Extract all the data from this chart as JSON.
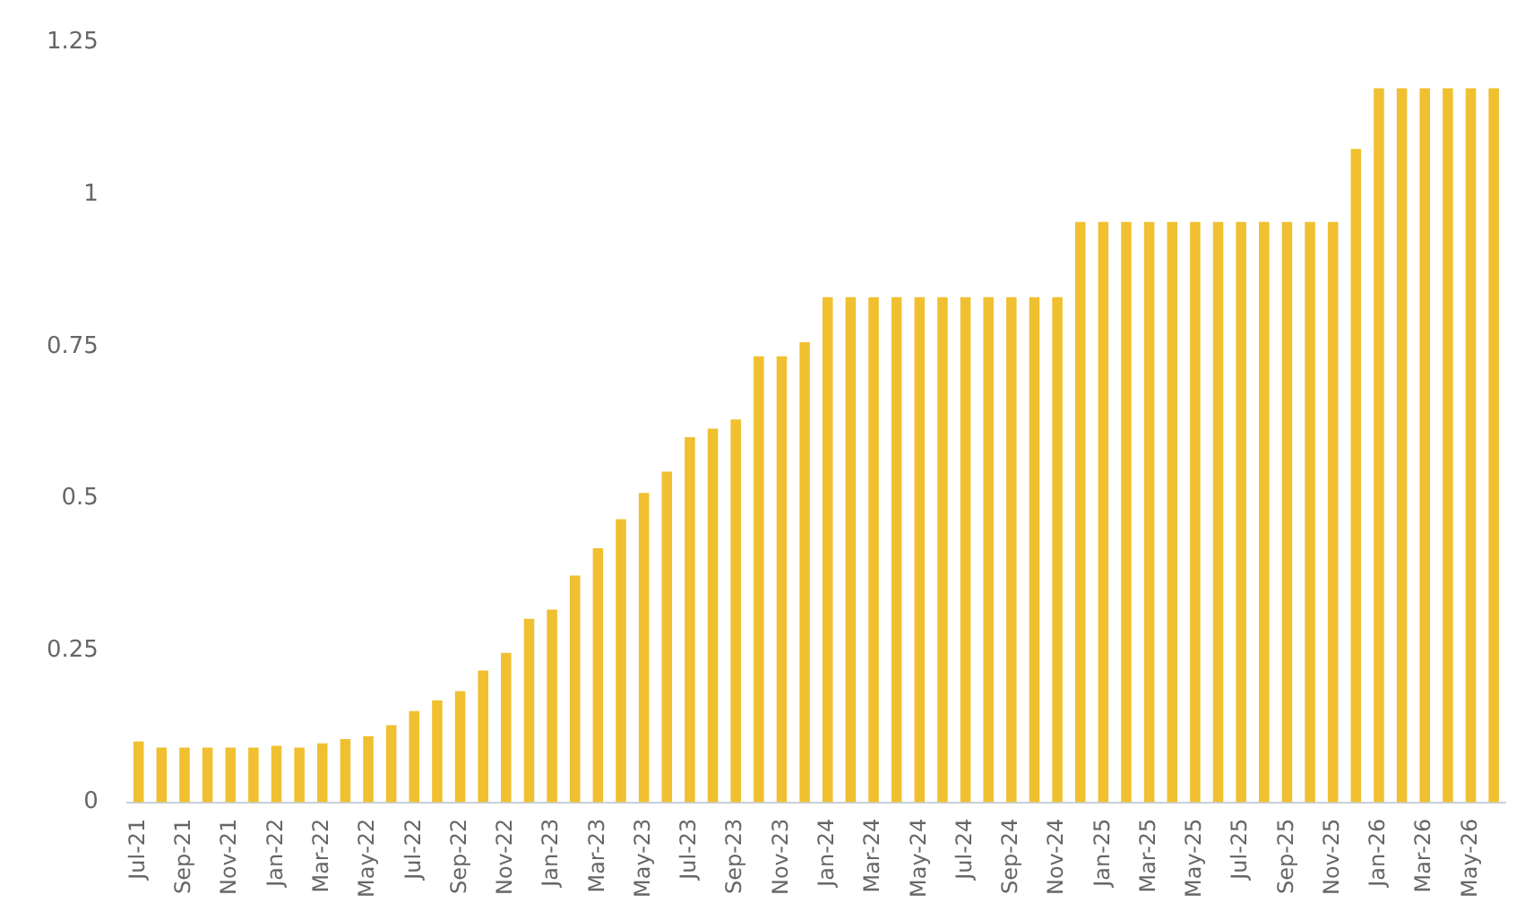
{
  "chart_data": {
    "type": "bar",
    "categories": [
      "Jul-21",
      null,
      "Sep-21",
      null,
      "Nov-21",
      null,
      "Jan-22",
      null,
      "Mar-22",
      null,
      "May-22",
      null,
      "Jul-22",
      null,
      "Sep-22",
      null,
      "Nov-22",
      null,
      "Jan-23",
      null,
      "Mar-23",
      null,
      "May-23",
      null,
      "Jul-23",
      null,
      "Sep-23",
      null,
      "Nov-23",
      null,
      "Jan-24",
      null,
      "Mar-24",
      null,
      "May-24",
      null,
      "Jul-24",
      null,
      "Sep-24",
      null,
      "Nov-24",
      null,
      "Jan-25",
      null,
      "Mar-25",
      null,
      "May-25",
      null,
      "Jul-25",
      null,
      "Sep-25",
      null,
      "Nov-25",
      null,
      "Jan-26",
      null,
      "Mar-26",
      null,
      "May-26",
      null
    ],
    "values": [
      0.1,
      0.09,
      0.09,
      0.09,
      0.09,
      0.09,
      0.093,
      0.09,
      0.097,
      0.104,
      0.109,
      0.127,
      0.15,
      0.168,
      0.183,
      0.217,
      0.246,
      0.302,
      0.317,
      0.373,
      0.418,
      0.466,
      0.509,
      0.544,
      0.601,
      0.615,
      0.63,
      0.734,
      0.734,
      0.757,
      0.831,
      0.831,
      0.831,
      0.831,
      0.831,
      0.831,
      0.831,
      0.831,
      0.831,
      0.831,
      0.831,
      0.955,
      0.955,
      0.955,
      0.955,
      0.955,
      0.955,
      0.955,
      0.955,
      0.955,
      0.955,
      0.955,
      0.955,
      1.075,
      1.175,
      1.175,
      1.175,
      1.175,
      1.175,
      1.175
    ],
    "color": "#f0c030",
    "ylim": [
      0,
      1.25
    ],
    "yticks": [
      0,
      0.25,
      0.5,
      0.75,
      1,
      1.25
    ],
    "grid": false,
    "legend": false
  }
}
